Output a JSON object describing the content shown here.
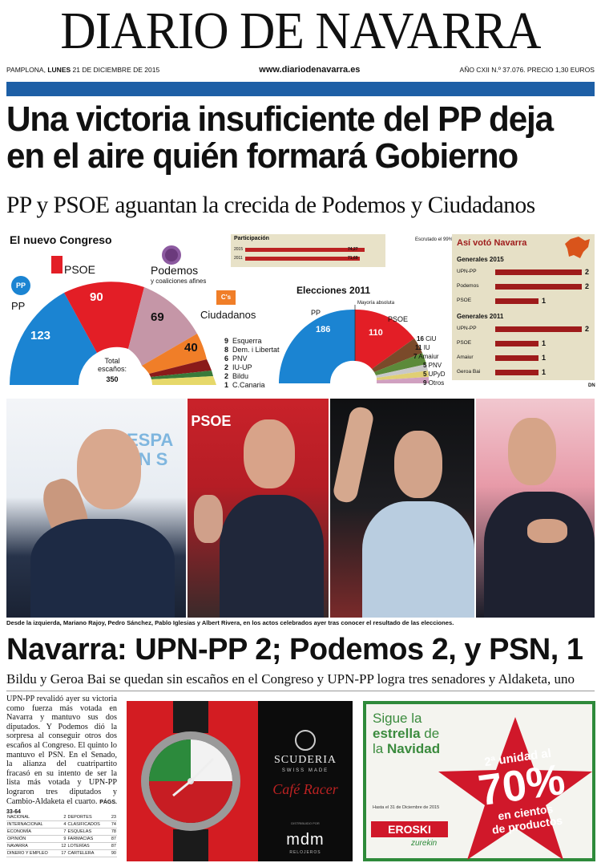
{
  "masthead": {
    "title": "DIARIO DE NAVARRA"
  },
  "dateline": {
    "place": "PAMPLONA,",
    "day": "LUNES",
    "date": "21 DE DICIEMBRE DE 2015",
    "website": "www.diariodenavarra.es",
    "issue": "AÑO CXII N.º 37.076. PRECIO 1,30 EUROS"
  },
  "lead": {
    "headline": "Una victoria insuficiente del PP deja en el aire quién formará Gobierno",
    "subhead": "PP y PSOE aguantan la crecida de Podemos y Ciudadanos"
  },
  "infographic": {
    "congress_title": "El nuevo Congreso",
    "total_label": "Total escaños:",
    "total_value": "350",
    "parties": {
      "pp": {
        "label": "PP",
        "seats": "123"
      },
      "psoe": {
        "label": "PSOE",
        "seats": "90"
      },
      "podemos": {
        "label": "Podemos",
        "note": "y coaliciones afines",
        "seats": "69"
      },
      "cs": {
        "label": "Ciudadanos",
        "logo": "C's",
        "seats": "40"
      }
    },
    "minor_parties": [
      {
        "seats": "9",
        "name": "Esquerra"
      },
      {
        "seats": "8",
        "name": "Dem. i Libertat"
      },
      {
        "seats": "6",
        "name": "PNV"
      },
      {
        "seats": "2",
        "name": "IU-UP"
      },
      {
        "seats": "2",
        "name": "Bildu"
      },
      {
        "seats": "1",
        "name": "C.Canaria"
      }
    ],
    "participation": {
      "title": "Participación",
      "rows": [
        {
          "year": "2015",
          "value": "74,27"
        },
        {
          "year": "2011",
          "value": "71,69"
        }
      ],
      "scrutiny": "Escrutado el 99%"
    },
    "e2011": {
      "title": "Elecciones 2011",
      "pp_label": "PP",
      "pp_seats": "186",
      "psoe_label": "PSOE",
      "psoe_seats": "110",
      "majority": "Mayoría absoluta",
      "others": [
        {
          "seats": "16",
          "name": "CiU"
        },
        {
          "seats": "11",
          "name": "IU"
        },
        {
          "seats": "7",
          "name": "Amaiur"
        },
        {
          "seats": "5",
          "name": "PNV"
        },
        {
          "seats": "5",
          "name": "UPyD"
        },
        {
          "seats": "9",
          "name": "Otros"
        }
      ]
    },
    "navarra": {
      "title": "Así votó Navarra",
      "g2015_title": "Generales 2015",
      "g2015": [
        {
          "party": "UPN-PP",
          "seats": "2"
        },
        {
          "party": "Podemos",
          "seats": "2"
        },
        {
          "party": "PSOE",
          "seats": "1"
        }
      ],
      "g2011_title": "Generales 2011",
      "g2011": [
        {
          "party": "UPN-PP",
          "seats": "2"
        },
        {
          "party": "PSOE",
          "seats": "1"
        },
        {
          "party": "Amaiur",
          "seats": "1"
        },
        {
          "party": "Geroa Bai",
          "seats": "1"
        }
      ],
      "credit": "DN"
    },
    "colors": {
      "pp": "#1b84d2",
      "psoe": "#e31e26",
      "podemos": "#c596a7",
      "cs": "#f07e28",
      "bar": "#a31d1d"
    }
  },
  "photos": {
    "caption": "Desde la izquierda, Mariano Rajoy, Pedro Sánchez, Pablo Iglesias y Albert Rivera, en los actos celebrados ayer tras conocer el resultado de las elecciones.",
    "psoe_sign": "PSOE",
    "backdrop_text": "ESPA EN S"
  },
  "second": {
    "headline": "Navarra: UPN-PP 2; Podemos 2, y PSN, 1",
    "subhead": "Bildu y Geroa Bai se quedan sin escaños en el Congreso y UPN-PP logra tres senadores y Aldaketa, uno",
    "story": "UPN-PP revalidó ayer su victoria como fuerza más votada en Navarra y mantuvo sus dos diputados. Y Podemos dió la sorpresa al conseguir otros dos escaños al Congreso. El quinto lo mantuvo el PSN. En el Senado, la alianza del cuatripartito fracasó en su intento de ser la lista más votada y UPN-PP lograron tres diputados y Cambio-Aldaketa el cuarto.",
    "pages": "PÁGS. 33-64"
  },
  "index": [
    [
      "NACIONAL",
      "2",
      "DEPORTES",
      "23"
    ],
    [
      "INTERNACIONAL",
      "4",
      "CLASIFICADOS",
      "74"
    ],
    [
      "ECONOMÍA",
      "7",
      "ESQUELAS",
      "78"
    ],
    [
      "OPINIÓN",
      "9",
      "FARMACIAS",
      "87"
    ],
    [
      "NAVARRA",
      "12",
      "LOTERÍAS",
      "87"
    ],
    [
      "DINERO Y EMPLEO",
      "17",
      "CARTELERA",
      "90"
    ]
  ],
  "ad_watch": {
    "brand": "SCUDERIA",
    "tagline": "SWISS MADE",
    "script": "Café Racer",
    "maker": "mdm",
    "maker_sub": "RELOJEROS",
    "small": "DISTRIBUIDO POR"
  },
  "ad_eroski": {
    "line1": "Sigue la",
    "line2a": "estrella",
    "line2b": "de",
    "line3a": "la",
    "line3b": "Navidad",
    "promo1": "2ª unidad al",
    "promo2": "70%",
    "promo3": "en cientos",
    "promo4": "de productos",
    "until": "Hasta el 31 de Diciembre de 2015",
    "brand": "EROSKI",
    "brand_sub": "zurekin"
  }
}
